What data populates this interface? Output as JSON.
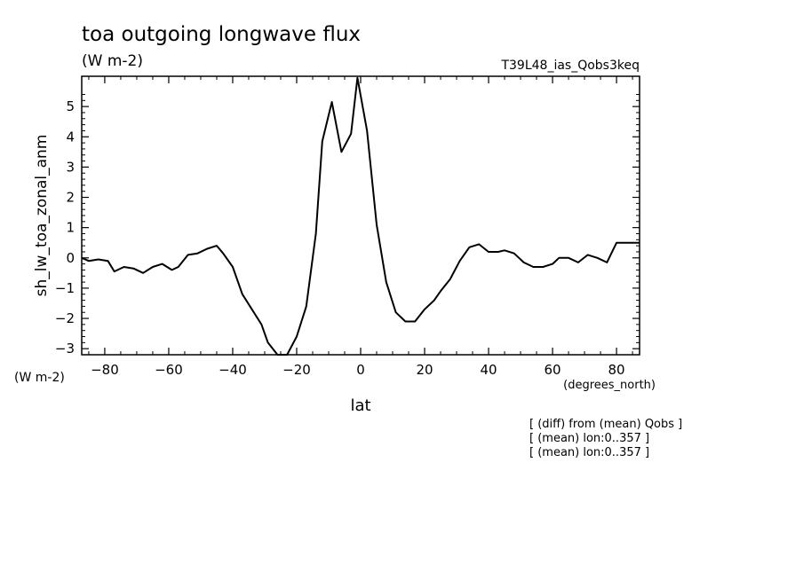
{
  "chart_data": {
    "type": "line",
    "title": "toa outgoing longwave flux",
    "units": "(W m-2)",
    "experiment": "T39L48_ias_Qobs3keq",
    "xlabel": "lat",
    "xunits": "(degrees_north)",
    "ylabel": "sh_lw_toa_zonal_anm",
    "yunits": "(W m-2)",
    "xlim": [
      -87.2,
      87.2
    ],
    "ylim": [
      -3.2,
      6
    ],
    "xticks": [
      -80,
      -60,
      -40,
      -20,
      0,
      20,
      40,
      60,
      80
    ],
    "yticks": [
      -3,
      -2,
      -1,
      0,
      1,
      2,
      3,
      4,
      5
    ],
    "x": [
      -87.2,
      -85,
      -82,
      -79,
      -77,
      -74,
      -71,
      -68,
      -65,
      -62,
      -59,
      -57,
      -54,
      -51,
      -48,
      -45,
      -43,
      -40,
      -37,
      -34,
      -31,
      -29,
      -26,
      -23,
      -20,
      -17,
      -14,
      -12,
      -9,
      -6,
      -3,
      -1,
      2,
      5,
      8,
      11,
      14,
      17,
      20,
      23,
      25,
      28,
      31,
      34,
      37,
      40,
      43,
      45,
      48,
      51,
      54,
      57,
      60,
      62,
      65,
      68,
      71,
      74,
      77,
      80,
      82,
      85,
      87.2
    ],
    "y": [
      0,
      -0.1,
      -0.05,
      -0.1,
      -0.45,
      -0.3,
      -0.35,
      -0.5,
      -0.3,
      -0.2,
      -0.4,
      -0.3,
      0.1,
      0.15,
      0.3,
      0.4,
      0.15,
      -0.3,
      -1.2,
      -1.7,
      -2.2,
      -2.8,
      -3.2,
      -3.2,
      -2.6,
      -1.6,
      0.8,
      3.85,
      5.15,
      3.5,
      4.1,
      5.95,
      4.2,
      1.1,
      -0.8,
      -1.8,
      -2.1,
      -2.1,
      -1.7,
      -1.4,
      -1.1,
      -0.7,
      -0.1,
      0.35,
      0.45,
      0.2,
      0.2,
      0.25,
      0.15,
      -0.15,
      -0.3,
      -0.3,
      -0.2,
      0,
      0,
      -0.15,
      0.1,
      0,
      -0.15,
      0.5,
      0.5,
      0.5,
      0.5
    ],
    "grid": false
  },
  "notes": [
    "[ (diff) from (mean) Qobs ]",
    "[ (mean) lon:0..357 ]",
    "[ (mean) lon:0..357 ]"
  ]
}
